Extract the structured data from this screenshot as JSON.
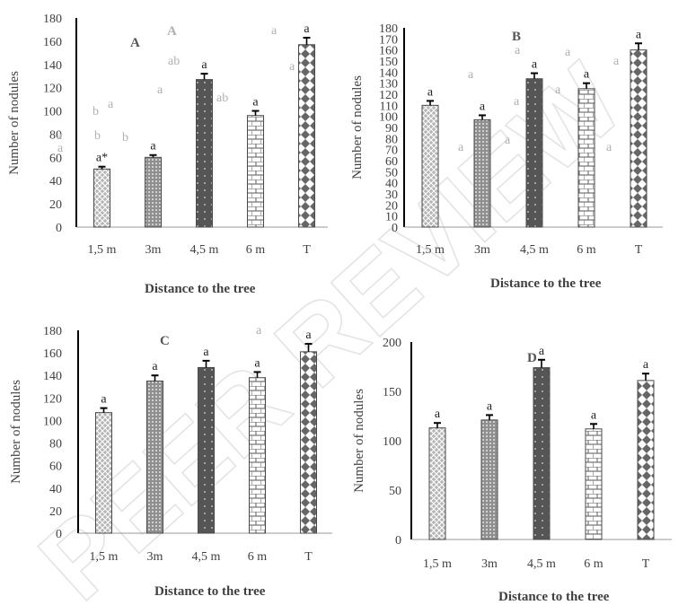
{
  "watermark": "PEER REVIEW",
  "chart_data": [
    {
      "type": "bar",
      "panel_label": "A",
      "xlabel": "Distance to the tree",
      "ylabel": "Number of nodules",
      "ylim": [
        0,
        180
      ],
      "yticks": [
        0,
        20,
        40,
        60,
        80,
        100,
        120,
        140,
        160,
        180
      ],
      "categories": [
        "1,5 m",
        "3m",
        "4,5 m",
        "6 m",
        "T"
      ],
      "values": [
        50,
        60,
        127,
        96,
        157
      ],
      "errors": [
        2,
        2,
        5,
        4,
        6
      ],
      "labels": [
        "a*",
        "a",
        "a",
        "a",
        "a"
      ]
    },
    {
      "type": "bar",
      "panel_label": "B",
      "xlabel": "Distance to the tree",
      "ylabel": "Number of nodules",
      "ylim": [
        0,
        180
      ],
      "yticks": [
        0,
        10,
        20,
        30,
        40,
        50,
        60,
        70,
        80,
        90,
        100,
        110,
        120,
        130,
        140,
        150,
        160,
        170,
        180
      ],
      "categories": [
        "1,5 m",
        "3m",
        "4,5 m",
        "6 m",
        "T"
      ],
      "values": [
        110,
        97,
        134,
        125,
        160
      ],
      "errors": [
        4,
        4,
        5,
        5,
        6
      ],
      "labels": [
        "a",
        "a",
        "a",
        "a",
        "a"
      ]
    },
    {
      "type": "bar",
      "panel_label": "C",
      "xlabel": "Distance to the tree",
      "ylabel": "Number of nodules",
      "ylim": [
        0,
        180
      ],
      "yticks": [
        0,
        20,
        40,
        60,
        80,
        100,
        120,
        140,
        160,
        180
      ],
      "categories": [
        "1,5 m",
        "3m",
        "4,5 m",
        "6 m",
        "T"
      ],
      "values": [
        107,
        135,
        147,
        138,
        161
      ],
      "errors": [
        4,
        5,
        6,
        5,
        7
      ],
      "labels": [
        "a",
        "a",
        "a",
        "a",
        "a"
      ]
    },
    {
      "type": "bar",
      "panel_label": "D",
      "xlabel": "Distance to the tree",
      "ylabel": "Number of nodules",
      "ylim": [
        0,
        200
      ],
      "yticks": [
        0,
        50,
        100,
        150,
        200
      ],
      "categories": [
        "1,5 m",
        "3m",
        "4,5 m",
        "6 m",
        "T"
      ],
      "values": [
        113,
        121,
        174,
        112,
        161
      ],
      "errors": [
        5,
        5,
        8,
        5,
        7
      ],
      "labels": [
        "a",
        "a",
        "a",
        "a",
        "a"
      ]
    }
  ],
  "overlay": {
    "panel_a_title": "A",
    "panel_a_letters": [
      "a",
      "ab",
      "a",
      "a",
      "a",
      "b",
      "b",
      "b",
      "ab",
      "a",
      "a"
    ],
    "panel_b_letters": [
      "a",
      "a",
      "a",
      "a",
      "a",
      "a",
      "a",
      "a",
      "a"
    ],
    "panel_c_letters": [
      "a"
    ]
  }
}
